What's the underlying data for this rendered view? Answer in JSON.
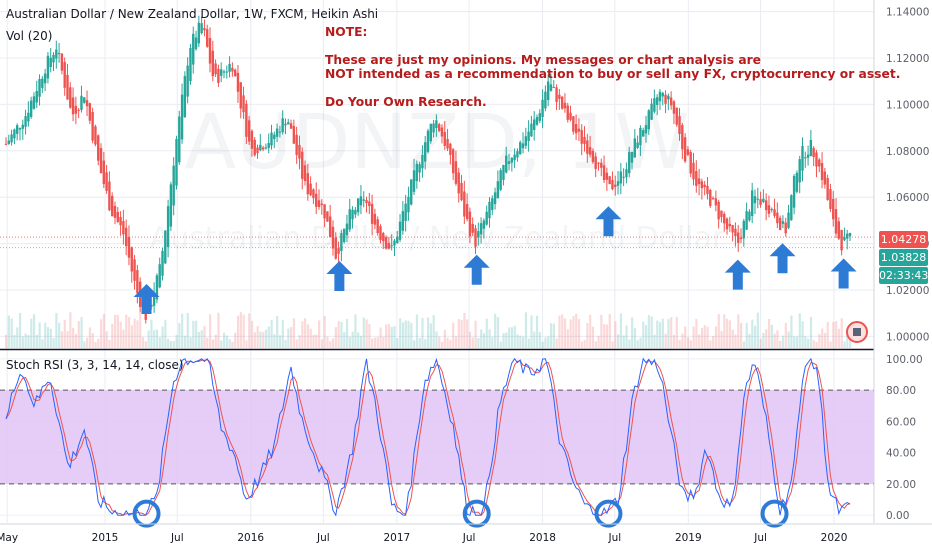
{
  "header": {
    "symbol_line": "Australian Dollar / New Zealand Dollar, 1W, FXCM, Heikin Ashi",
    "volume_label": "Vol (20)",
    "stoch_label": "Stoch RSI (3, 3, 14, 14, close)"
  },
  "watermark": {
    "ticker": "AUDNZD, 1W",
    "name": "Australian Dollar / New Zealand Dollar"
  },
  "note": {
    "title": "NOTE:",
    "line1": "These are just my opinions. My messages or chart analysis are",
    "line2": "NOT intended as a recommendation to buy or sell any FX, cryptocurrency or asset.",
    "line3": "Do Your Own Research."
  },
  "price_tags": {
    "current": "1.04278",
    "heikin_close": "1.03828",
    "countdown": "02:33:43"
  },
  "colors": {
    "up": "#26a69a",
    "down": "#ef5350",
    "arrow": "#2e7bd6",
    "band": "#e1c4f6",
    "note_text": "#b71c1c",
    "stoch_k": "#2962ff",
    "stoch_d": "#ef5350"
  },
  "icons": [
    "arrow-up-icon",
    "circle-marker-icon",
    "alert-badge-icon"
  ],
  "chart_data": [
    {
      "type": "candlestick",
      "title": "Australian Dollar / New Zealand Dollar, 1W, FXCM, Heikin Ashi",
      "ylim": [
        0.995,
        1.145
      ],
      "y_ticks": [
        "1.14000",
        "1.12000",
        "1.10000",
        "1.08000",
        "1.06000",
        "1.04000",
        "1.02000",
        "1.00000"
      ],
      "y_tick_values": [
        1.14,
        1.12,
        1.1,
        1.08,
        1.06,
        1.04,
        1.02,
        1.0
      ],
      "x_ticks": [
        "May",
        "2015",
        "Jul",
        "2016",
        "Jul",
        "2017",
        "Jul",
        "2018",
        "Jul",
        "2019",
        "Jul",
        "2020"
      ],
      "x_tick_dates": [
        "2014-05",
        "2015-01",
        "2015-07",
        "2016-01",
        "2016-07",
        "2017-01",
        "2017-07",
        "2018-01",
        "2018-07",
        "2019-01",
        "2019-07",
        "2020-01"
      ],
      "x_range": [
        "2014-04-28",
        "2020-02-10"
      ],
      "current_price": 1.04278,
      "heikin_close": 1.03828,
      "price_path": [
        {
          "date": "2014-04-28",
          "close": 1.083
        },
        {
          "date": "2014-06-15",
          "close": 1.095
        },
        {
          "date": "2014-08-01",
          "close": 1.115
        },
        {
          "date": "2014-09-01",
          "close": 1.125
        },
        {
          "date": "2014-10-10",
          "close": 1.095
        },
        {
          "date": "2014-11-10",
          "close": 1.105
        },
        {
          "date": "2014-12-15",
          "close": 1.075
        },
        {
          "date": "2015-01-15",
          "close": 1.055
        },
        {
          "date": "2015-02-15",
          "close": 1.045
        },
        {
          "date": "2015-03-20",
          "close": 1.02
        },
        {
          "date": "2015-04-15",
          "close": 1.008
        },
        {
          "date": "2015-05-20",
          "close": 1.03
        },
        {
          "date": "2015-06-25",
          "close": 1.08
        },
        {
          "date": "2015-08-01",
          "close": 1.125
        },
        {
          "date": "2015-09-01",
          "close": 1.135
        },
        {
          "date": "2015-10-01",
          "close": 1.11
        },
        {
          "date": "2015-11-15",
          "close": 1.118
        },
        {
          "date": "2016-01-01",
          "close": 1.08
        },
        {
          "date": "2016-02-20",
          "close": 1.085
        },
        {
          "date": "2016-04-01",
          "close": 1.095
        },
        {
          "date": "2016-05-15",
          "close": 1.065
        },
        {
          "date": "2016-07-01",
          "close": 1.055
        },
        {
          "date": "2016-08-01",
          "close": 1.035
        },
        {
          "date": "2016-09-05",
          "close": 1.052
        },
        {
          "date": "2016-10-10",
          "close": 1.06
        },
        {
          "date": "2016-11-15",
          "close": 1.045
        },
        {
          "date": "2016-12-20",
          "close": 1.037
        },
        {
          "date": "2017-02-01",
          "close": 1.062
        },
        {
          "date": "2017-03-05",
          "close": 1.08
        },
        {
          "date": "2017-04-05",
          "close": 1.095
        },
        {
          "date": "2017-05-05",
          "close": 1.082
        },
        {
          "date": "2017-06-15",
          "close": 1.055
        },
        {
          "date": "2017-07-15",
          "close": 1.04
        },
        {
          "date": "2017-08-20",
          "close": 1.055
        },
        {
          "date": "2017-10-01",
          "close": 1.075
        },
        {
          "date": "2017-11-15",
          "close": 1.085
        },
        {
          "date": "2017-12-20",
          "close": 1.095
        },
        {
          "date": "2018-01-15",
          "close": 1.11
        },
        {
          "date": "2018-02-15",
          "close": 1.1
        },
        {
          "date": "2018-03-15",
          "close": 1.09
        },
        {
          "date": "2018-05-01",
          "close": 1.08
        },
        {
          "date": "2018-06-15",
          "close": 1.063
        },
        {
          "date": "2018-07-20",
          "close": 1.07
        },
        {
          "date": "2018-08-25",
          "close": 1.085
        },
        {
          "date": "2018-09-25",
          "close": 1.095
        },
        {
          "date": "2018-10-20",
          "close": 1.105
        },
        {
          "date": "2018-11-20",
          "close": 1.1
        },
        {
          "date": "2018-12-20",
          "close": 1.08
        },
        {
          "date": "2019-01-25",
          "close": 1.065
        },
        {
          "date": "2019-03-01",
          "close": 1.058
        },
        {
          "date": "2019-04-05",
          "close": 1.047
        },
        {
          "date": "2019-05-05",
          "close": 1.04
        },
        {
          "date": "2019-06-10",
          "close": 1.06
        },
        {
          "date": "2019-07-10",
          "close": 1.058
        },
        {
          "date": "2019-08-05",
          "close": 1.053
        },
        {
          "date": "2019-09-01",
          "close": 1.045
        },
        {
          "date": "2019-10-05",
          "close": 1.078
        },
        {
          "date": "2019-11-05",
          "close": 1.082
        },
        {
          "date": "2019-12-01",
          "close": 1.07
        },
        {
          "date": "2020-01-01",
          "close": 1.047
        },
        {
          "date": "2020-01-20",
          "close": 1.04
        },
        {
          "date": "2020-02-10",
          "close": 1.042
        }
      ],
      "arrow_markers": [
        "2015-04-15",
        "2016-08-10",
        "2017-07-20",
        "2018-06-15",
        "2019-05-05",
        "2019-08-25",
        "2020-01-25"
      ]
    },
    {
      "type": "line",
      "title": "Stoch RSI (3, 3, 14, 14, close)",
      "ylim": [
        -5,
        105
      ],
      "y_ticks": [
        "100.00",
        "80.00",
        "60.00",
        "40.00",
        "20.00",
        "0.00"
      ],
      "y_tick_values": [
        100,
        80,
        60,
        40,
        20,
        0
      ],
      "band": [
        20,
        80
      ],
      "series": [
        {
          "points": [
            {
              "date": "2014-04-28",
              "y": 60
            },
            {
              "date": "2014-06-01",
              "y": 95
            },
            {
              "date": "2014-07-10",
              "y": 70
            },
            {
              "date": "2014-08-15",
              "y": 90
            },
            {
              "date": "2014-10-01",
              "y": 30
            },
            {
              "date": "2014-11-10",
              "y": 55
            },
            {
              "date": "2014-12-15",
              "y": 10
            },
            {
              "date": "2015-01-20",
              "y": 2
            },
            {
              "date": "2015-04-01",
              "y": 0
            },
            {
              "date": "2015-05-10",
              "y": 10
            },
            {
              "date": "2015-06-20",
              "y": 85
            },
            {
              "date": "2015-07-15",
              "y": 100
            },
            {
              "date": "2015-09-15",
              "y": 100
            },
            {
              "date": "2015-10-20",
              "y": 55
            },
            {
              "date": "2015-11-20",
              "y": 40
            },
            {
              "date": "2015-12-20",
              "y": 10
            },
            {
              "date": "2016-01-25",
              "y": 25
            },
            {
              "date": "2016-03-01",
              "y": 45
            },
            {
              "date": "2016-04-10",
              "y": 95
            },
            {
              "date": "2016-05-10",
              "y": 60
            },
            {
              "date": "2016-06-15",
              "y": 35
            },
            {
              "date": "2016-08-01",
              "y": 3
            },
            {
              "date": "2016-09-10",
              "y": 40
            },
            {
              "date": "2016-10-15",
              "y": 98
            },
            {
              "date": "2016-11-10",
              "y": 70
            },
            {
              "date": "2016-12-20",
              "y": 5
            },
            {
              "date": "2017-01-25",
              "y": 0
            },
            {
              "date": "2017-03-10",
              "y": 85
            },
            {
              "date": "2017-04-10",
              "y": 100
            },
            {
              "date": "2017-05-20",
              "y": 60
            },
            {
              "date": "2017-06-25",
              "y": 5
            },
            {
              "date": "2017-08-05",
              "y": 0
            },
            {
              "date": "2017-09-15",
              "y": 70
            },
            {
              "date": "2017-10-20",
              "y": 100
            },
            {
              "date": "2017-11-30",
              "y": 90
            },
            {
              "date": "2018-01-10",
              "y": 100
            },
            {
              "date": "2018-02-15",
              "y": 45
            },
            {
              "date": "2018-03-20",
              "y": 20
            },
            {
              "date": "2018-04-20",
              "y": 5
            },
            {
              "date": "2018-06-01",
              "y": 0
            },
            {
              "date": "2018-07-10",
              "y": 10
            },
            {
              "date": "2018-08-15",
              "y": 75
            },
            {
              "date": "2018-09-10",
              "y": 100
            },
            {
              "date": "2018-10-20",
              "y": 95
            },
            {
              "date": "2018-11-20",
              "y": 50
            },
            {
              "date": "2018-12-20",
              "y": 10
            },
            {
              "date": "2019-01-20",
              "y": 15
            },
            {
              "date": "2019-02-15",
              "y": 45
            },
            {
              "date": "2019-03-15",
              "y": 15
            },
            {
              "date": "2019-04-20",
              "y": 3
            },
            {
              "date": "2019-05-20",
              "y": 75
            },
            {
              "date": "2019-06-15",
              "y": 100
            },
            {
              "date": "2019-07-15",
              "y": 60
            },
            {
              "date": "2019-08-20",
              "y": 2
            },
            {
              "date": "2019-09-20",
              "y": 25
            },
            {
              "date": "2019-10-20",
              "y": 100
            },
            {
              "date": "2019-11-20",
              "y": 95
            },
            {
              "date": "2019-12-20",
              "y": 15
            },
            {
              "date": "2020-01-15",
              "y": 2
            },
            {
              "date": "2020-02-10",
              "y": 5
            }
          ]
        }
      ],
      "circle_markers": [
        "2015-04-15",
        "2017-07-20",
        "2018-06-15",
        "2019-08-05"
      ]
    }
  ]
}
